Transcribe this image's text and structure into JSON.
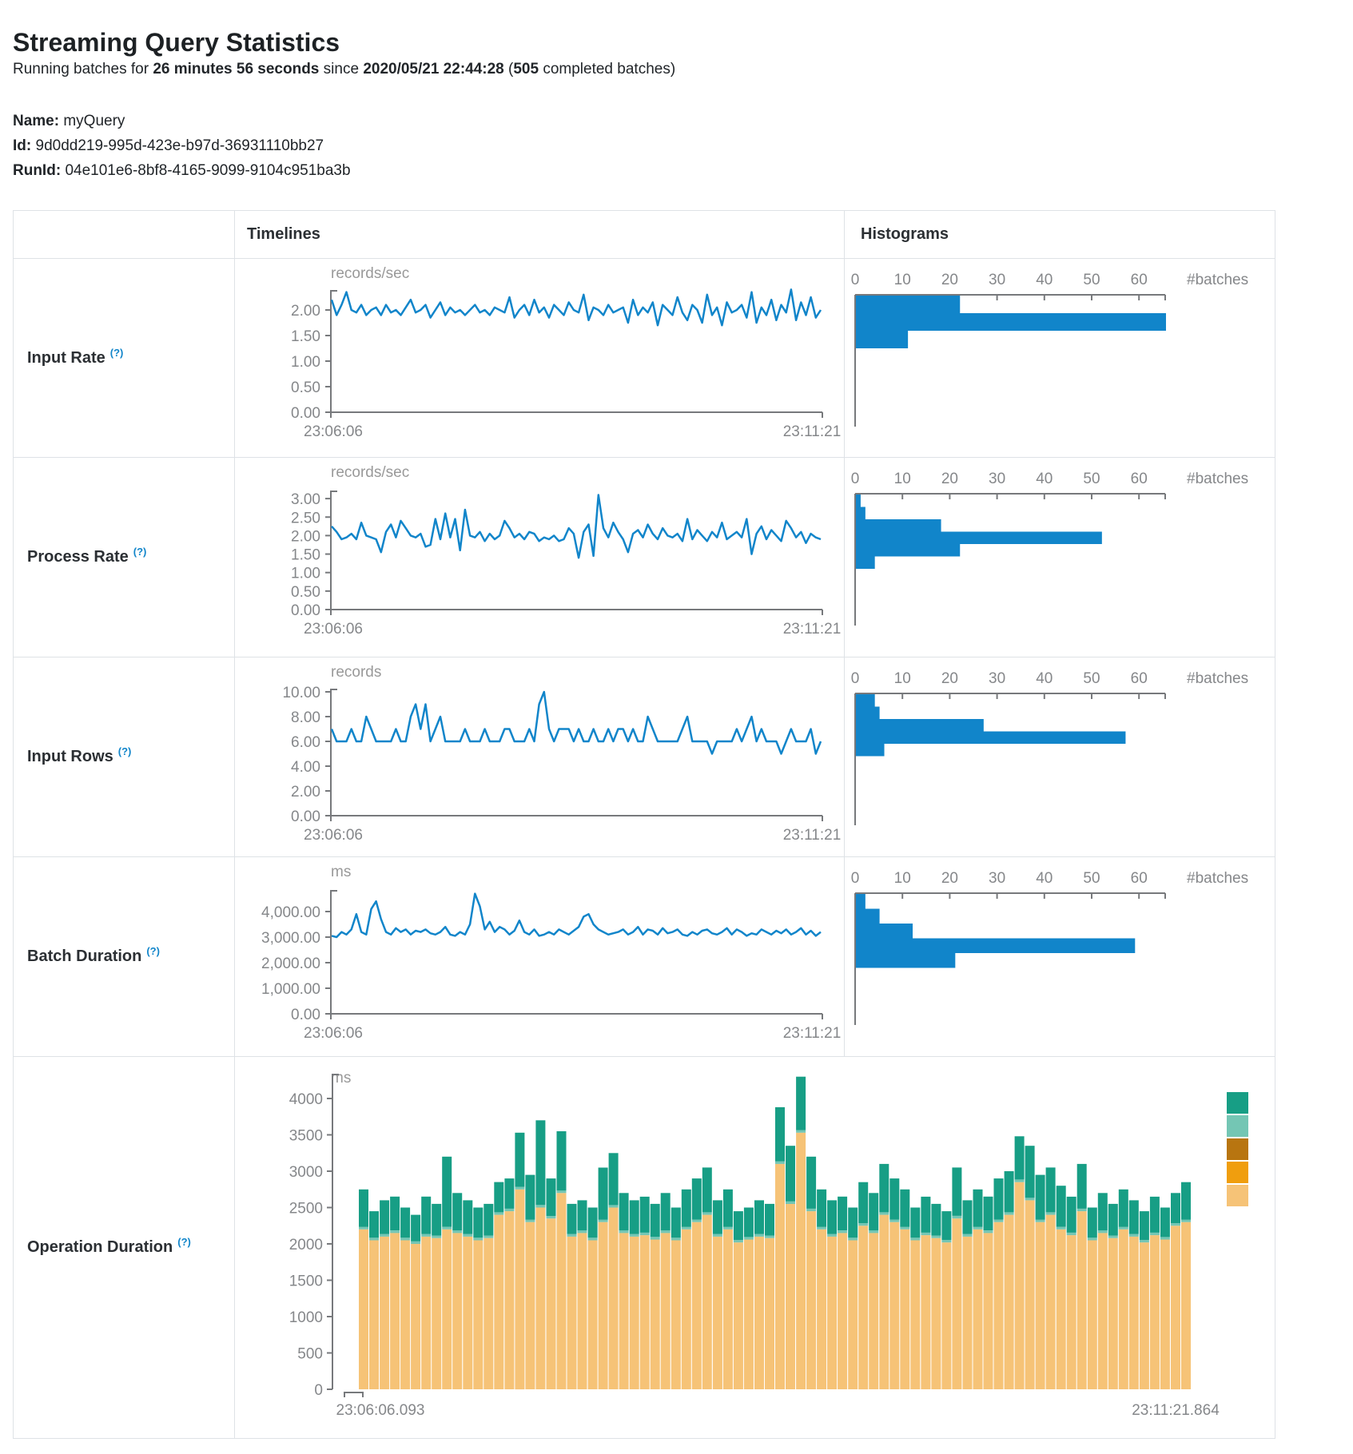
{
  "header": {
    "title": "Streaming Query Statistics",
    "subtitle": {
      "prefix": "Running batches for ",
      "duration": "26 minutes 56 seconds",
      "since": " since ",
      "start_time": "2020/05/21 22:44:28",
      "paren_open": " (",
      "completed_batches": "505",
      "suffix": " completed batches)"
    },
    "meta": [
      {
        "label": "Name:",
        "value": "myQuery"
      },
      {
        "label": "Id:",
        "value": "9d0dd219-995d-423e-b97d-36931110bb27"
      },
      {
        "label": "RunId:",
        "value": "04e101e6-8bf8-4165-9099-9104c951ba3b"
      }
    ]
  },
  "table": {
    "columns": {
      "timelines": "Timelines",
      "histograms": "Histograms"
    },
    "rows": [
      {
        "label": "Input Rate",
        "help": "(?)"
      },
      {
        "label": "Process Rate",
        "help": "(?)"
      },
      {
        "label": "Input Rows",
        "help": "(?)"
      },
      {
        "label": "Batch Duration",
        "help": "(?)"
      },
      {
        "label": "Operation Duration",
        "help": "(?)"
      }
    ]
  },
  "colors": {
    "accent_blue": "#1185ca",
    "axis_line": "#77797c",
    "axis_text": "#85878a",
    "unit_text": "#999999",
    "border": "#dee2e6",
    "help_blue": "#1185ca"
  },
  "chart_data": [
    {
      "id": "input-rate-timeline",
      "type": "line",
      "unit": "records/sec",
      "line_color": "#1185ca",
      "x_start_label": "23:06:06",
      "x_end_label": "23:11:21",
      "ylim": [
        0,
        2.4
      ],
      "y_ticks": [
        {
          "value": 2,
          "label": "2.00"
        },
        {
          "value": 1.5,
          "label": "1.50"
        },
        {
          "value": 1,
          "label": "1.00"
        },
        {
          "value": 0.5,
          "label": "0.50"
        },
        {
          "value": 0,
          "label": "0.00"
        }
      ],
      "values": [
        2.2,
        1.9,
        2.1,
        2.35,
        2.0,
        1.95,
        2.1,
        1.9,
        2.0,
        2.05,
        1.9,
        2.1,
        1.95,
        2.0,
        1.9,
        2.05,
        2.2,
        1.95,
        2.0,
        2.1,
        1.85,
        2.0,
        2.15,
        1.9,
        2.05,
        1.95,
        2.0,
        1.9,
        2.0,
        2.1,
        1.95,
        2.0,
        1.9,
        2.05,
        2.0,
        1.95,
        2.25,
        1.85,
        2.0,
        2.1,
        1.9,
        2.2,
        1.95,
        2.05,
        1.85,
        2.1,
        2.0,
        1.9,
        2.15,
        2.0,
        1.95,
        2.3,
        1.8,
        2.05,
        2.0,
        1.9,
        2.1,
        1.95,
        2.0,
        2.05,
        1.75,
        2.2,
        1.9,
        2.05,
        1.95,
        2.15,
        1.7,
        2.1,
        2.0,
        1.9,
        2.25,
        1.95,
        1.8,
        2.1,
        2.0,
        1.75,
        2.3,
        1.9,
        2.05,
        1.7,
        2.15,
        1.95,
        2.0,
        2.1,
        1.85,
        2.35,
        1.75,
        2.05,
        1.9,
        2.2,
        1.8,
        2.1,
        1.95,
        2.4,
        1.8,
        2.15,
        1.9,
        2.25,
        1.85,
        2.0
      ]
    },
    {
      "id": "input-rate-histogram",
      "type": "histogram",
      "bar_color": "#1185ca",
      "axis_label": "#batches",
      "x_ticks": [
        {
          "value": 0,
          "label": "0"
        },
        {
          "value": 10,
          "label": "10"
        },
        {
          "value": 20,
          "label": "20"
        },
        {
          "value": 30,
          "label": "30"
        },
        {
          "value": 40,
          "label": "40"
        },
        {
          "value": 50,
          "label": "50"
        },
        {
          "value": 60,
          "label": "60"
        }
      ],
      "values": [
        22,
        66,
        11
      ]
    },
    {
      "id": "process-rate-timeline",
      "type": "line",
      "unit": "records/sec",
      "line_color": "#1185ca",
      "x_start_label": "23:06:06",
      "x_end_label": "23:11:21",
      "ylim": [
        0,
        3.1
      ],
      "y_ticks": [
        {
          "value": 3,
          "label": "3.00"
        },
        {
          "value": 2.5,
          "label": "2.50"
        },
        {
          "value": 2,
          "label": "2.00"
        },
        {
          "value": 1.5,
          "label": "1.50"
        },
        {
          "value": 1,
          "label": "1.00"
        },
        {
          "value": 0.5,
          "label": "0.50"
        },
        {
          "value": 0,
          "label": "0.00"
        }
      ],
      "values": [
        2.25,
        2.1,
        1.9,
        1.95,
        2.05,
        1.9,
        2.35,
        2.0,
        1.95,
        1.9,
        1.55,
        2.1,
        2.3,
        1.95,
        2.4,
        2.2,
        2.0,
        1.95,
        2.05,
        1.7,
        1.75,
        2.45,
        1.9,
        2.6,
        1.95,
        2.45,
        1.6,
        2.7,
        2.0,
        1.95,
        2.1,
        1.85,
        2.05,
        1.9,
        2.0,
        2.4,
        2.2,
        1.95,
        2.05,
        1.9,
        2.1,
        2.05,
        1.85,
        1.95,
        1.9,
        2.0,
        1.85,
        1.9,
        2.2,
        2.05,
        1.4,
        2.1,
        2.3,
        1.45,
        3.1,
        2.2,
        1.95,
        2.35,
        2.1,
        1.9,
        1.55,
        2.05,
        2.15,
        1.95,
        2.3,
        2.05,
        1.9,
        2.2,
        2.0,
        1.95,
        2.05,
        1.85,
        2.45,
        1.9,
        2.15,
        2.0,
        1.85,
        2.1,
        1.95,
        2.35,
        1.9,
        2.0,
        2.1,
        1.95,
        2.45,
        1.5,
        2.05,
        2.25,
        1.9,
        2.15,
        2.0,
        1.85,
        2.4,
        2.2,
        1.95,
        2.1,
        1.8,
        2.05,
        1.95,
        1.9
      ]
    },
    {
      "id": "process-rate-histogram",
      "type": "histogram",
      "bar_color": "#1185ca",
      "axis_label": "#batches",
      "x_ticks": [
        {
          "value": 0,
          "label": "0"
        },
        {
          "value": 10,
          "label": "10"
        },
        {
          "value": 20,
          "label": "20"
        },
        {
          "value": 30,
          "label": "30"
        },
        {
          "value": 40,
          "label": "40"
        },
        {
          "value": 50,
          "label": "50"
        },
        {
          "value": 60,
          "label": "60"
        }
      ],
      "values": [
        1,
        2,
        18,
        52,
        22,
        4
      ]
    },
    {
      "id": "input-rows-timeline",
      "type": "line",
      "unit": "records",
      "line_color": "#1185ca",
      "x_start_label": "23:06:06",
      "x_end_label": "23:11:21",
      "ylim": [
        0,
        10
      ],
      "y_ticks": [
        {
          "value": 10,
          "label": "10.00"
        },
        {
          "value": 8,
          "label": "8.00"
        },
        {
          "value": 6,
          "label": "6.00"
        },
        {
          "value": 4,
          "label": "4.00"
        },
        {
          "value": 2,
          "label": "2.00"
        },
        {
          "value": 0,
          "label": "0.00"
        }
      ],
      "values": [
        7,
        6,
        6,
        6,
        7,
        6,
        6,
        8,
        7,
        6,
        6,
        6,
        6,
        7,
        6,
        6,
        8,
        9,
        7,
        9,
        6,
        7,
        8,
        6,
        6,
        6,
        6,
        7,
        6,
        6,
        6,
        7,
        6,
        6,
        6,
        7,
        7,
        6,
        6,
        6,
        7,
        6,
        9,
        10,
        7,
        6,
        7,
        7,
        7,
        6,
        7,
        6,
        6,
        7,
        6,
        6,
        7,
        6,
        7,
        7,
        6,
        7,
        6,
        6,
        8,
        7,
        6,
        6,
        6,
        6,
        6,
        7,
        8,
        6,
        6,
        6,
        6,
        5,
        6,
        6,
        6,
        6,
        7,
        6,
        7,
        8,
        6,
        7,
        6,
        6,
        6,
        5,
        6,
        7,
        6,
        6,
        6,
        7,
        5,
        6
      ]
    },
    {
      "id": "input-rows-histogram",
      "type": "histogram",
      "bar_color": "#1185ca",
      "axis_label": "#batches",
      "x_ticks": [
        {
          "value": 0,
          "label": "0"
        },
        {
          "value": 10,
          "label": "10"
        },
        {
          "value": 20,
          "label": "20"
        },
        {
          "value": 30,
          "label": "30"
        },
        {
          "value": 40,
          "label": "40"
        },
        {
          "value": 50,
          "label": "50"
        },
        {
          "value": 60,
          "label": "60"
        }
      ],
      "values": [
        4,
        5,
        27,
        57,
        6
      ]
    },
    {
      "id": "batch-duration-timeline",
      "type": "line",
      "unit": "ms",
      "line_color": "#1185ca",
      "x_start_label": "23:06:06",
      "x_end_label": "23:11:21",
      "ylim": [
        0,
        4700
      ],
      "y_ticks": [
        {
          "value": 4000,
          "label": "4,000.00"
        },
        {
          "value": 3000,
          "label": "3,000.00"
        },
        {
          "value": 2000,
          "label": "2,000.00"
        },
        {
          "value": 1000,
          "label": "1,000.00"
        },
        {
          "value": 0,
          "label": "0.00"
        }
      ],
      "values": [
        3050,
        3000,
        3200,
        3100,
        3300,
        3900,
        3200,
        3100,
        4100,
        4400,
        3700,
        3200,
        3100,
        3350,
        3200,
        3300,
        3100,
        3250,
        3200,
        3300,
        3150,
        3100,
        3200,
        3400,
        3100,
        3050,
        3200,
        3100,
        3500,
        4700,
        4200,
        3300,
        3600,
        3200,
        3400,
        3300,
        3100,
        3250,
        3650,
        3200,
        3100,
        3300,
        3050,
        3100,
        3200,
        3100,
        3300,
        3200,
        3100,
        3250,
        3400,
        3800,
        3900,
        3500,
        3300,
        3200,
        3100,
        3150,
        3200,
        3300,
        3100,
        3200,
        3400,
        3100,
        3300,
        3250,
        3100,
        3350,
        3150,
        3200,
        3300,
        3100,
        3050,
        3200,
        3100,
        3250,
        3300,
        3150,
        3100,
        3200,
        3350,
        3100,
        3300,
        3200,
        3050,
        3150,
        3100,
        3300,
        3200,
        3100,
        3250,
        3150,
        3300,
        3100,
        3200,
        3350,
        3100,
        3250,
        3050,
        3200
      ]
    },
    {
      "id": "batch-duration-histogram",
      "type": "histogram",
      "bar_color": "#1185ca",
      "axis_label": "#batches",
      "x_ticks": [
        {
          "value": 0,
          "label": "0"
        },
        {
          "value": 10,
          "label": "10"
        },
        {
          "value": 20,
          "label": "20"
        },
        {
          "value": 30,
          "label": "30"
        },
        {
          "value": 40,
          "label": "40"
        },
        {
          "value": 50,
          "label": "50"
        },
        {
          "value": 60,
          "label": "60"
        }
      ],
      "values": [
        2,
        5,
        12,
        59,
        21
      ]
    },
    {
      "id": "operation-duration-stacked",
      "type": "stacked-bar",
      "unit": "ms",
      "x_start_label": "23:06:06.093",
      "x_end_label": "23:11:21.864",
      "ylim": [
        0,
        4300
      ],
      "y_ticks": [
        {
          "value": 4000,
          "label": "4000"
        },
        {
          "value": 3500,
          "label": "3500"
        },
        {
          "value": 3000,
          "label": "3000"
        },
        {
          "value": 2500,
          "label": "2500"
        },
        {
          "value": 2000,
          "label": "2000"
        },
        {
          "value": 1500,
          "label": "1500"
        },
        {
          "value": 1000,
          "label": "1000"
        },
        {
          "value": 500,
          "label": "500"
        },
        {
          "value": 0,
          "label": "0"
        }
      ],
      "stack_order": "bottom-to-top",
      "series": [
        {
          "name": "segment-tan",
          "color": "#f6c377",
          "values": [
            2200,
            2050,
            2100,
            2150,
            2050,
            2000,
            2100,
            2080,
            2200,
            2150,
            2100,
            2050,
            2080,
            2400,
            2450,
            2750,
            2300,
            2500,
            2350,
            2700,
            2100,
            2150,
            2050,
            2300,
            2500,
            2150,
            2100,
            2120,
            2060,
            2150,
            2050,
            2200,
            2300,
            2400,
            2100,
            2200,
            2020,
            2060,
            2100,
            2080,
            3100,
            2550,
            3530,
            2450,
            2200,
            2100,
            2150,
            2050,
            2250,
            2150,
            2400,
            2300,
            2200,
            2050,
            2120,
            2080,
            2020,
            2350,
            2100,
            2200,
            2150,
            2300,
            2400,
            2850,
            2600,
            2300,
            2400,
            2200,
            2120,
            2450,
            2050,
            2150,
            2080,
            2200,
            2100,
            2020,
            2120,
            2060,
            2250,
            2300
          ]
        },
        {
          "name": "segment-light-teal",
          "color": "#74c6b4",
          "uniform": 35
        },
        {
          "name": "segment-teal",
          "color": "#179e85",
          "values": [
            515,
            365,
            465,
            465,
            415,
            365,
            515,
            435,
            965,
            515,
            465,
            415,
            435,
            415,
            415,
            745,
            615,
            1165,
            515,
            815,
            415,
            415,
            415,
            715,
            715,
            515,
            465,
            495,
            455,
            515,
            415,
            515,
            565,
            615,
            465,
            515,
            395,
            405,
            465,
            435,
            745,
            765,
            735,
            715,
            515,
            465,
            465,
            415,
            565,
            515,
            665,
            565,
            515,
            415,
            495,
            435,
            395,
            665,
            465,
            515,
            465,
            565,
            565,
            595,
            715,
            615,
            615,
            565,
            495,
            615,
            415,
            515,
            435,
            515,
            465,
            395,
            495,
            405,
            415,
            515
          ]
        }
      ],
      "legend": [
        {
          "name": "legend-teal",
          "color": "#179e85"
        },
        {
          "name": "legend-light-teal",
          "color": "#74c6b4"
        },
        {
          "name": "legend-brown",
          "color": "#b87510"
        },
        {
          "name": "legend-orange",
          "color": "#f09e0e"
        },
        {
          "name": "legend-tan",
          "color": "#f6c377"
        }
      ]
    }
  ]
}
